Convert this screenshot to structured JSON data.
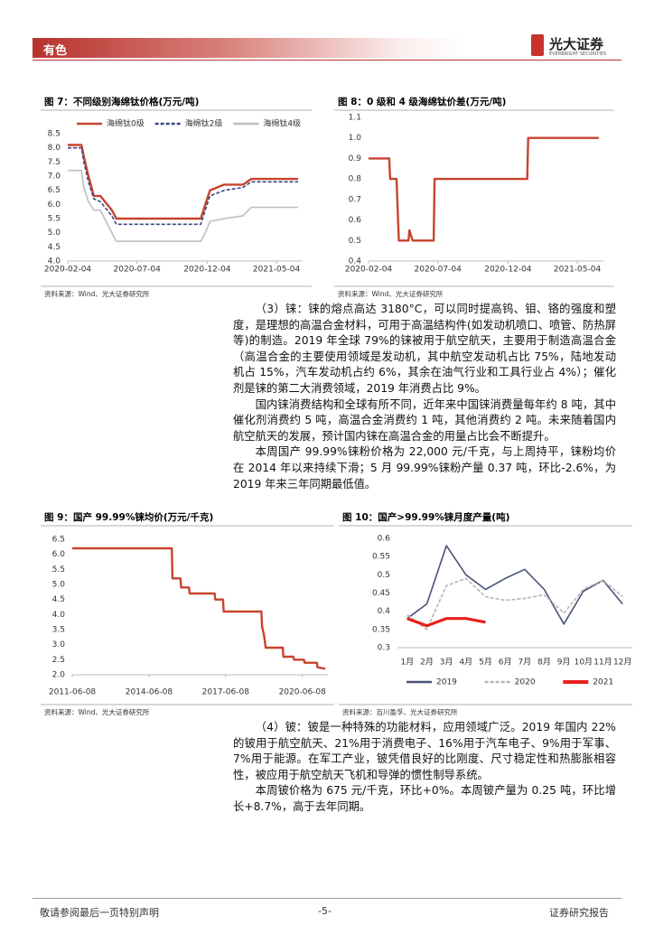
{
  "header": {
    "section": "有色",
    "logo": "光大证券",
    "logo_en": "EVERBRIGHT SECURITIES"
  },
  "chart_data": [
    {
      "type": "line",
      "title": "图 7：不同级别海绵钛价格(万元/吨)",
      "source": "资料来源：Wind、光大证券研究所",
      "x": [
        "2020-02-04",
        "2020-03-05",
        "2020-03-10",
        "2020-03-20",
        "2020-04-01",
        "2020-04-15",
        "2020-05-10",
        "2020-05-20",
        "2020-06-10",
        "2020-11-20",
        "2020-11-30",
        "2020-12-10",
        "2021-01-10",
        "2021-02-20",
        "2021-03-10",
        "2021-06-20"
      ],
      "series": [
        {
          "name": "海绵钛0级",
          "color": "#c8432e",
          "style": "solid",
          "values": [
            8.1,
            8.1,
            7.7,
            7.0,
            6.3,
            6.3,
            5.8,
            5.5,
            5.5,
            5.5,
            6.0,
            6.5,
            6.7,
            6.7,
            6.9,
            6.9
          ]
        },
        {
          "name": "海绵钛2级",
          "color": "#3a4a86",
          "style": "dashed",
          "values": [
            8.0,
            8.0,
            7.5,
            6.8,
            6.2,
            6.1,
            5.6,
            5.3,
            5.3,
            5.3,
            5.8,
            6.3,
            6.5,
            6.6,
            6.8,
            6.8
          ]
        },
        {
          "name": "海绵钛4级",
          "color": "#bdbdbd",
          "style": "solid",
          "values": [
            7.2,
            7.2,
            6.6,
            6.1,
            5.8,
            5.8,
            5.0,
            4.7,
            4.7,
            4.7,
            5.0,
            5.4,
            5.5,
            5.6,
            5.9,
            5.9
          ]
        }
      ],
      "xlim": [
        "2020-02-04",
        "2021-06-30"
      ],
      "xticks": [
        "2020-02-04",
        "2020-07-04",
        "2020-12-04",
        "2021-05-04"
      ],
      "ylim": [
        4,
        8.5
      ],
      "yticks": [
        {
          "value": 4,
          "label": "4.0"
        },
        4.5,
        {
          "value": 5,
          "label": "5.0"
        },
        5.5,
        {
          "value": 6,
          "label": "6.0"
        },
        6.5,
        {
          "value": 7,
          "label": "7.0"
        },
        7.5,
        {
          "value": 8,
          "label": "8.0"
        },
        8.5
      ],
      "legend": "top",
      "grid": false
    },
    {
      "type": "line",
      "title": "图 8：0 级和 4 级海绵钛价差(万元/吨)",
      "source": "资料来源：Wind、光大证券研究所",
      "x": [
        "2020-02-04",
        "2020-03-20",
        "2020-03-22",
        "2020-04-05",
        "2020-04-10",
        "2020-05-01",
        "2020-05-03",
        "2020-05-10",
        "2020-06-25",
        "2020-06-27",
        "2021-01-15",
        "2021-01-17",
        "2021-06-20"
      ],
      "series": [
        {
          "color": "#c8432e",
          "style": "solid",
          "values": [
            0.9,
            0.9,
            0.8,
            0.8,
            0.5,
            0.5,
            0.55,
            0.5,
            0.5,
            0.8,
            0.8,
            1.0,
            1.0
          ]
        }
      ],
      "xlim": [
        "2020-02-04",
        "2021-06-30"
      ],
      "xticks": [
        "2020-02-04",
        "2020-07-04",
        "2020-12-04",
        "2021-05-04"
      ],
      "ylim": [
        0.4,
        1.1
      ],
      "yticks": [
        0.4,
        0.5,
        0.6,
        0.7,
        0.8,
        0.9,
        {
          "value": 1,
          "label": "1.0"
        },
        1.1
      ],
      "grid": false
    },
    {
      "type": "line",
      "title": "图 9：国产 99.99%铼均价(万元/千克)",
      "source": "资料来源：Wind、光大证券研究所",
      "x": [
        "2011-06-08",
        "2015-05-01",
        "2015-05-10",
        "2015-09-01",
        "2015-09-10",
        "2016-01-01",
        "2016-01-10",
        "2017-01-01",
        "2017-01-10",
        "2017-05-01",
        "2017-05-10",
        "2018-11-01",
        "2018-11-10",
        "2018-12-10",
        "2019-01-01",
        "2019-09-01",
        "2019-09-10",
        "2020-02-01",
        "2020-02-10",
        "2020-07-01",
        "2020-07-10",
        "2021-01-01",
        "2021-01-10",
        "2021-05-01"
      ],
      "series": [
        {
          "color": "#c8432e",
          "style": "solid",
          "values": [
            6.2,
            6.2,
            5.2,
            5.2,
            4.9,
            4.9,
            4.7,
            4.7,
            4.5,
            4.5,
            4.1,
            4.1,
            3.6,
            3.3,
            2.9,
            2.9,
            2.6,
            2.6,
            2.5,
            2.5,
            2.4,
            2.4,
            2.25,
            2.2
          ]
        }
      ],
      "xlim": [
        "2011-06-08",
        "2021-06-08"
      ],
      "xticks": [
        "2011-06-08",
        "2014-06-08",
        "2017-06-08",
        "2020-06-08"
      ],
      "ylim": [
        2,
        6.5
      ],
      "yticks": [
        {
          "value": 2,
          "label": "2.0"
        },
        2.5,
        {
          "value": 3,
          "label": "3.0"
        },
        3.5,
        {
          "value": 4,
          "label": "4.0"
        },
        4.5,
        {
          "value": 5,
          "label": "5.0"
        },
        5.5,
        {
          "value": 6,
          "label": "6.0"
        },
        6.5
      ],
      "grid": false
    },
    {
      "type": "line",
      "title": "图 10：国产>99.99%铼月度产量(吨)",
      "source": "资料来源：百川盈孚、光大证券研究所",
      "categories": [
        "1月",
        "2月",
        "3月",
        "4月",
        "5月",
        "6月",
        "7月",
        "8月",
        "9月",
        "10月",
        "11月",
        "12月"
      ],
      "series": [
        {
          "name": "2019",
          "color": "#4a5278",
          "style": "solid",
          "values": [
            0.38,
            0.42,
            0.58,
            0.5,
            0.46,
            0.49,
            0.515,
            0.46,
            0.365,
            0.455,
            0.485,
            0.42
          ]
        },
        {
          "name": "2020",
          "color": "#b5b5b5",
          "style": "dashed",
          "values": [
            0.39,
            0.35,
            0.47,
            0.49,
            0.44,
            0.43,
            0.435,
            0.445,
            0.395,
            0.46,
            0.485,
            0.44
          ]
        },
        {
          "name": "2021",
          "color": "#e8201b",
          "style": "bold",
          "values": [
            0.38,
            0.36,
            0.38,
            0.38,
            0.37,
            null,
            null,
            null,
            null,
            null,
            null,
            null
          ]
        }
      ],
      "ylim": [
        0.3,
        0.6
      ],
      "yticks": [
        0.3,
        0.35,
        0.4,
        0.45,
        0.5,
        0.55,
        0.6
      ],
      "legend": "bottom",
      "grid": false
    }
  ],
  "paragraphs": [
    "（3）铼：铼的熔点高达 3180°C，可以同时提高钨、钼、铬的强度和塑度，是理想的高温合金材料，可用于高温结构件(如发动机喷口、喷管、防热屏等)的制造。2019 年全球 79%的铼被用于航空航天，主要用于制造高温合金（高温合金的主要使用领域是发动机，其中航空发动机占比 75%，陆地发动机占 15%，汽车发动机占约 6%，其余在油气行业和工具行业占 4%）；催化剂是铼的第二大消费领域，2019 年消费占比 9%。",
    "国内铼消费结构和全球有所不同，近年来中国铼消费量每年约 8 吨，其中催化剂消费约 5 吨，高温合金消费约 1 吨，其他消费约 2 吨。未来随着国内航空航天的发展，预计国内铼在高温合金的用量占比会不断提升。",
    "本周国产 99.99%铼粉价格为 22,000 元/千克，与上周持平，铼粉均价在 2014 年以来持续下滑；5 月 99.99%铼粉产量 0.37 吨，环比-2.6%，为 2019 年来三年同期最低值。",
    "（4）铍：铍是一种特殊的功能材料，应用领域广泛。2019 年国内 22%的铍用于航空航天、21%用于消费电子、16%用于汽车电子、9%用于军事、7%用于能源。在军工产业，铍凭借良好的比刚度、尺寸稳定性和热膨胀相容性，被应用于航空航天飞机和导弹的惯性制导系统。",
    "本周铍价格为 675 元/千克，环比+0%。本周铍产量为 0.25 吨，环比增长+8.7%，高于去年同期。"
  ],
  "footer": {
    "left": "敬请参阅最后一页特别声明",
    "page": "-5-",
    "right": "证券研究报告"
  }
}
